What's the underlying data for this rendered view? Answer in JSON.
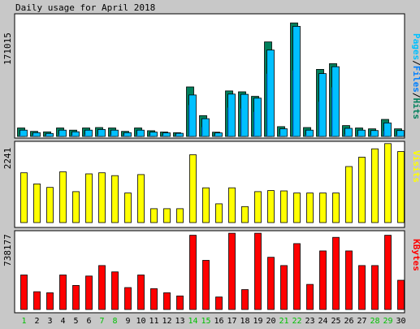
{
  "colors": {
    "background": "#c8c8c8",
    "panel": "#ffffff",
    "hits": "#00805c",
    "files": "#0080ff",
    "pages": "#00c0ff",
    "visits": "#ffff00",
    "kbytes": "#ff0000",
    "weekend_day": "#00c000",
    "weekday": "#000000"
  },
  "chart_data": [
    {
      "type": "bar",
      "title": "Daily usage for April 2018",
      "categories": [
        "1",
        "2",
        "3",
        "4",
        "5",
        "6",
        "7",
        "8",
        "9",
        "10",
        "11",
        "12",
        "13",
        "14",
        "15",
        "16",
        "17",
        "18",
        "19",
        "20",
        "21",
        "22",
        "23",
        "24",
        "25",
        "26",
        "27",
        "28",
        "29",
        "30"
      ],
      "weekend_days": [
        "1",
        "7",
        "8",
        "14",
        "15",
        "21",
        "22",
        "28",
        "29"
      ],
      "ymax_label": "171015",
      "legend_text": [
        "Pages",
        "/",
        "Files",
        "/",
        "Hits"
      ],
      "series": [
        {
          "name": "Hits",
          "color_key": "hits",
          "values": [
            10100,
            6000,
            5500,
            10100,
            7500,
            10100,
            10500,
            10100,
            6000,
            10100,
            6800,
            5300,
            4500,
            58500,
            24600,
            5100,
            53800,
            52700,
            47400,
            111600,
            11600,
            134000,
            10500,
            79200,
            86000,
            12800,
            10100,
            9000,
            20100,
            9000
          ]
        },
        {
          "name": "Files",
          "color_key": "files",
          "values": [
            7500,
            4500,
            3500,
            7500,
            5600,
            7500,
            8200,
            7500,
            4500,
            7500,
            5200,
            4300,
            3700,
            49000,
            21000,
            4200,
            50000,
            49800,
            45200,
            102000,
            9100,
            130000,
            7500,
            74200,
            82300,
            9600,
            7500,
            7000,
            16000,
            7000
          ]
        },
        {
          "name": "Pages",
          "color_key": "pages",
          "values": [
            2300,
            1500,
            1200,
            2300,
            1700,
            2300,
            2300,
            2300,
            1500,
            2200,
            1600,
            1300,
            1100,
            37000,
            11000,
            1100,
            34000,
            33000,
            29000,
            74000,
            2500,
            78000,
            2000,
            41000,
            58000,
            2500,
            2000,
            2000,
            6400,
            1800
          ]
        }
      ]
    },
    {
      "type": "bar",
      "categories": [
        "1",
        "2",
        "3",
        "4",
        "5",
        "6",
        "7",
        "8",
        "9",
        "10",
        "11",
        "12",
        "13",
        "14",
        "15",
        "16",
        "17",
        "18",
        "19",
        "20",
        "21",
        "22",
        "23",
        "24",
        "25",
        "26",
        "27",
        "28",
        "29",
        "30"
      ],
      "ymax_label": "2241",
      "legend_text": [
        "Visits"
      ],
      "series": [
        {
          "name": "Visits",
          "color_key": "visits",
          "values": [
            1430,
            1110,
            1010,
            1460,
            890,
            1400,
            1430,
            1350,
            850,
            1380,
            400,
            400,
            400,
            1950,
            1000,
            540,
            1000,
            460,
            890,
            920,
            910,
            850,
            850,
            850,
            850,
            1610,
            1880,
            2120,
            2270,
            2040
          ]
        }
      ]
    },
    {
      "type": "bar",
      "categories": [
        "1",
        "2",
        "3",
        "4",
        "5",
        "6",
        "7",
        "8",
        "9",
        "10",
        "11",
        "12",
        "13",
        "14",
        "15",
        "16",
        "17",
        "18",
        "19",
        "20",
        "21",
        "22",
        "23",
        "24",
        "25",
        "26",
        "27",
        "28",
        "29",
        "30"
      ],
      "ymax_label": "738177",
      "legend_text": [
        "KBytes"
      ],
      "series": [
        {
          "name": "KBytes",
          "color_key": "kbytes",
          "values": [
            330000,
            170000,
            160000,
            330000,
            230000,
            320000,
            420000,
            360000,
            210000,
            330000,
            200000,
            160000,
            130000,
            710000,
            470000,
            120000,
            730000,
            190000,
            730000,
            500000,
            420000,
            630000,
            240000,
            560000,
            690000,
            560000,
            420000,
            420000,
            710000,
            280000
          ]
        }
      ]
    }
  ]
}
